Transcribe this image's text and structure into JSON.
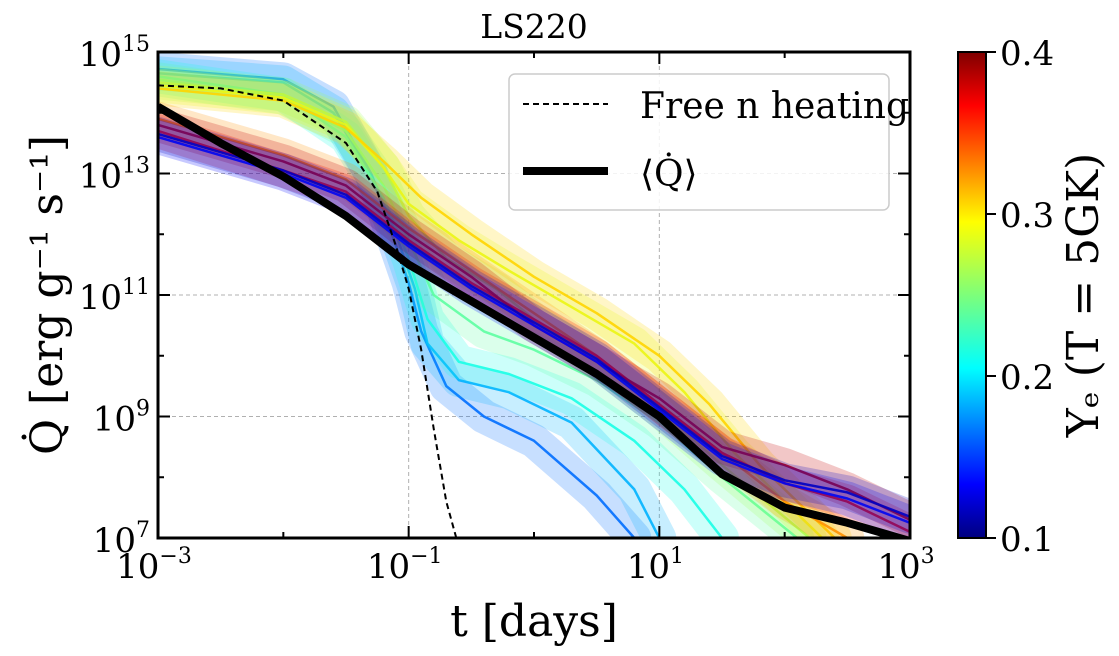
{
  "chart_data": {
    "type": "line",
    "title": "LS220",
    "xlabel": "t [days]",
    "ylabel": "Q̇ [erg g⁻¹ s⁻¹]",
    "xscale": "log",
    "yscale": "log",
    "xlim": [
      0.001,
      1000
    ],
    "ylim": [
      10000000.0,
      1000000000000000.0
    ],
    "grid": true,
    "legend_position": "top-right",
    "x_ticks": [
      {
        "base": "10",
        "exp": "−3"
      },
      {
        "base": "10",
        "exp": "−1"
      },
      {
        "base": "10",
        "exp": "1"
      },
      {
        "base": "10",
        "exp": "3"
      }
    ],
    "y_ticks": [
      {
        "base": "10",
        "exp": "7"
      },
      {
        "base": "10",
        "exp": "9"
      },
      {
        "base": "10",
        "exp": "11"
      },
      {
        "base": "10",
        "exp": "13"
      },
      {
        "base": "10",
        "exp": "15"
      }
    ],
    "colorbar": {
      "label": "Yₑ (T = 5GK)",
      "range": [
        0.1,
        0.4
      ],
      "ticks": [
        "0.1",
        "0.2",
        "0.3",
        "0.4"
      ],
      "colormap": "jet"
    },
    "legend": [
      {
        "label": "Free n heating",
        "style": "dashed"
      },
      {
        "label": "⟨Q̇⟩",
        "style": "thick-solid"
      }
    ],
    "series": [
      {
        "name": "Free n heating",
        "style": "dashed",
        "color": "#000000",
        "log10_t": [
          -3,
          -2.5,
          -2,
          -1.5,
          -1.25,
          -1.1,
          -1,
          -0.9,
          -0.8,
          -0.7,
          -0.62
        ],
        "log10_q": [
          14.45,
          14.4,
          14.2,
          13.5,
          12.7,
          11.8,
          11.1,
          10.1,
          8.8,
          7.6,
          7.0
        ]
      },
      {
        "name": "⟨Q̇⟩",
        "style": "thick-solid",
        "color": "#000000",
        "log10_t": [
          -3,
          -2.5,
          -2,
          -1.5,
          -1,
          -0.5,
          0,
          0.5,
          1,
          1.5,
          2,
          2.5,
          3
        ],
        "log10_q": [
          14.1,
          13.5,
          12.95,
          12.3,
          11.5,
          10.9,
          10.3,
          9.7,
          9.0,
          8.05,
          7.5,
          7.25,
          6.95
        ]
      }
    ],
    "ensemble": [
      {
        "ye": 0.17,
        "log10_t": [
          -3,
          -2,
          -1.6,
          -1.3,
          -1.15,
          -1,
          -0.9,
          -0.7,
          -0.4,
          0,
          0.5,
          0.8
        ],
        "log10_q": [
          14.72,
          14.55,
          14.1,
          13.0,
          12.1,
          11.2,
          10.4,
          9.5,
          9.0,
          8.6,
          7.7,
          7.0
        ]
      },
      {
        "ye": 0.19,
        "log10_t": [
          -3,
          -2,
          -1.6,
          -1.3,
          -1.1,
          -0.95,
          -0.85,
          -0.6,
          -0.2,
          0.3,
          0.8,
          1.0
        ],
        "log10_q": [
          14.65,
          14.5,
          14.0,
          13.0,
          12.0,
          11.1,
          10.2,
          9.6,
          9.4,
          8.9,
          7.8,
          7.0
        ]
      },
      {
        "ye": 0.22,
        "log10_t": [
          -3,
          -2,
          -1.5,
          -1.2,
          -1,
          -0.85,
          -0.6,
          -0.2,
          0.3,
          0.8,
          1.2,
          1.5
        ],
        "log10_q": [
          14.6,
          14.3,
          13.6,
          12.6,
          11.6,
          10.6,
          9.9,
          9.7,
          9.3,
          8.6,
          7.8,
          7.0
        ]
      },
      {
        "ye": 0.24,
        "log10_t": [
          -3,
          -2,
          -1.5,
          -1.2,
          -1,
          -0.8,
          -0.4,
          0,
          0.5,
          1,
          1.5,
          2.1
        ],
        "log10_q": [
          14.55,
          14.25,
          13.7,
          12.8,
          11.9,
          11.0,
          10.4,
          10.1,
          9.6,
          8.9,
          8.0,
          7.0
        ]
      },
      {
        "ye": 0.26,
        "log10_t": [
          -3,
          -2,
          -1.5,
          -1.2,
          -1,
          -0.7,
          -0.3,
          0,
          0.5,
          1,
          1.5,
          2.2
        ],
        "log10_q": [
          14.5,
          14.3,
          13.85,
          13.1,
          12.3,
          11.6,
          11.1,
          10.6,
          9.9,
          9.1,
          8.2,
          7.0
        ]
      },
      {
        "ye": 0.28,
        "log10_t": [
          -3,
          -2,
          -1.5,
          -1.2,
          -1,
          -0.6,
          -0.2,
          0.3,
          0.8,
          1.2,
          1.6,
          2.3
        ],
        "log10_q": [
          14.45,
          14.25,
          13.8,
          13.1,
          12.5,
          11.9,
          11.4,
          10.8,
          10.2,
          9.4,
          8.4,
          7.0
        ]
      },
      {
        "ye": 0.3,
        "log10_t": [
          -3,
          -2,
          -1.5,
          -1.2,
          -0.9,
          -0.5,
          0,
          0.5,
          1,
          1.4,
          1.8,
          2.4
        ],
        "log10_q": [
          14.4,
          14.2,
          13.75,
          13.2,
          12.6,
          12.0,
          11.3,
          10.7,
          10.0,
          9.2,
          8.2,
          7.0
        ]
      },
      {
        "ye": 0.32,
        "log10_t": [
          -3,
          -2,
          -1.5,
          -1,
          -0.5,
          0,
          0.5,
          1,
          1.5,
          2.0,
          2.5
        ],
        "log10_q": [
          13.9,
          13.3,
          12.9,
          12.1,
          11.4,
          10.7,
          10.0,
          9.2,
          8.4,
          7.6,
          7.0
        ]
      },
      {
        "ye": 0.36,
        "log10_t": [
          -3,
          -2,
          -1.5,
          -1,
          -0.5,
          0,
          0.5,
          1,
          1.5,
          2,
          2.5,
          3
        ],
        "log10_q": [
          13.7,
          13.05,
          12.7,
          11.9,
          11.2,
          10.6,
          10.0,
          9.2,
          8.4,
          7.9,
          7.6,
          7.1
        ]
      },
      {
        "ye": 0.38,
        "log10_t": [
          -3,
          -2,
          -1.5,
          -1,
          -0.5,
          0,
          0.5,
          1,
          1.5,
          2,
          2.5,
          3
        ],
        "log10_q": [
          13.8,
          13.2,
          12.8,
          12.0,
          11.3,
          10.5,
          9.9,
          9.3,
          8.5,
          8.2,
          7.8,
          7.3
        ]
      },
      {
        "ye": 0.14,
        "log10_t": [
          -3,
          -2,
          -1.5,
          -1,
          -0.5,
          0,
          0.5,
          1,
          1.5,
          2,
          2.5,
          3
        ],
        "log10_q": [
          13.6,
          13.0,
          12.6,
          11.8,
          11.1,
          10.5,
          9.9,
          9.1,
          8.3,
          7.9,
          7.65,
          7.25
        ]
      },
      {
        "ye": 0.12,
        "log10_t": [
          -3,
          -2,
          -1.5,
          -1,
          -0.5,
          0,
          0.5,
          1,
          1.5,
          2,
          2.5,
          3
        ],
        "log10_q": [
          13.65,
          13.05,
          12.65,
          11.85,
          11.15,
          10.55,
          9.95,
          9.15,
          8.35,
          7.95,
          7.75,
          7.35
        ]
      }
    ]
  }
}
